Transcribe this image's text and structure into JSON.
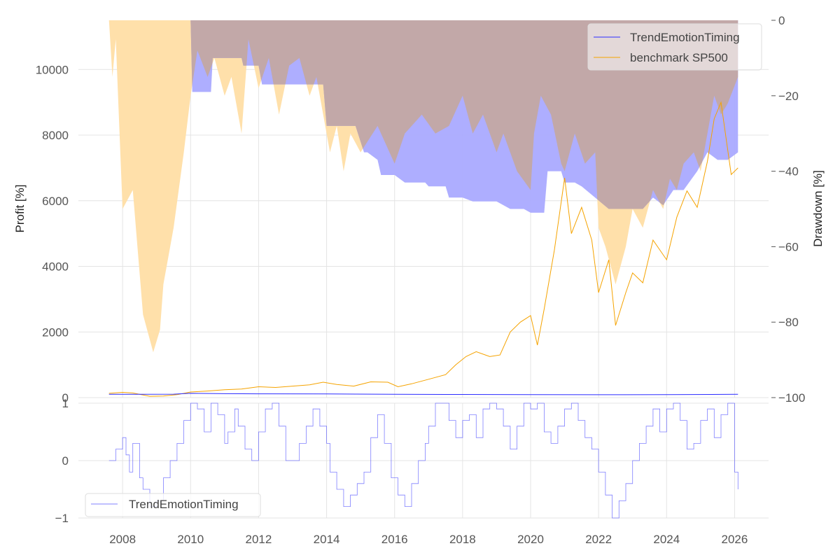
{
  "colors": {
    "strategy": "#2b2bff",
    "benchmark": "#f5a300",
    "strategy_dd_fill": "#aaaaff",
    "benchmark_dd_fill": "#ffe0aa",
    "overlap_fill": "#c2a8a8",
    "grid": "#e4e4e4",
    "tick_text": "#555555"
  },
  "chart_data": [
    {
      "type": "line",
      "panel": "top",
      "ylabel": "Profit [%]",
      "ylim": [
        0,
        11500
      ],
      "yticks": [
        "0",
        "2000",
        "4000",
        "6000",
        "8000",
        "10000"
      ],
      "ytick_values": [
        0,
        2000,
        4000,
        6000,
        8000,
        10000
      ],
      "y2label": "Drawdown [%]",
      "y2lim": [
        -100,
        0
      ],
      "y2ticks": [
        "−100",
        "−80",
        "−60",
        "−40",
        "−20",
        "0"
      ],
      "y2tick_values": [
        -100,
        -80,
        -60,
        -40,
        -20,
        0
      ],
      "xlim": [
        2006.7,
        2027.0
      ],
      "legend": {
        "position": "top-right",
        "entries": [
          "TrendEmotionTiming",
          "benchmark SP500"
        ]
      },
      "series": [
        {
          "name": "TrendEmotionTiming",
          "kind": "profit",
          "x": [
            2007.6,
            2008.5,
            2009.5,
            2010.0,
            2011.0,
            2012.0,
            2014.0,
            2016.0,
            2018.0,
            2020.0,
            2022.0,
            2024.0,
            2026.1
          ],
          "values": [
            100,
            102,
            105,
            130,
            120,
            115,
            110,
            100,
            95,
            90,
            88,
            92,
            100
          ]
        },
        {
          "name": "benchmark SP500",
          "kind": "profit",
          "x": [
            2007.6,
            2008.0,
            2008.3,
            2008.8,
            2009.2,
            2009.6,
            2010.0,
            2010.5,
            2011.0,
            2011.5,
            2012.0,
            2012.5,
            2013.0,
            2013.5,
            2013.9,
            2014.3,
            2014.8,
            2015.3,
            2015.8,
            2016.1,
            2016.5,
            2017.0,
            2017.5,
            2017.8,
            2018.1,
            2018.4,
            2018.8,
            2019.1,
            2019.4,
            2019.7,
            2020.0,
            2020.2,
            2020.4,
            2020.7,
            2021.0,
            2021.2,
            2021.5,
            2021.8,
            2022.0,
            2022.3,
            2022.5,
            2022.8,
            2023.0,
            2023.3,
            2023.6,
            2024.0,
            2024.3,
            2024.6,
            2024.9,
            2025.2,
            2025.4,
            2025.6,
            2025.9,
            2026.1
          ],
          "values": [
            130,
            160,
            140,
            40,
            50,
            90,
            170,
            200,
            240,
            260,
            330,
            310,
            350,
            390,
            470,
            400,
            350,
            480,
            470,
            330,
            420,
            560,
            700,
            1000,
            1250,
            1400,
            1250,
            1300,
            2000,
            2300,
            2500,
            1600,
            2700,
            4500,
            6700,
            5000,
            5800,
            4800,
            3200,
            4200,
            2200,
            3200,
            3800,
            3500,
            4800,
            4200,
            5500,
            6300,
            5800,
            7200,
            8500,
            9000,
            6800,
            7000
          ]
        },
        {
          "name": "TrendEmotionTiming drawdown",
          "kind": "drawdown",
          "x": [
            2007.6,
            2010.0,
            2010.05,
            2010.6,
            2010.65,
            2011.5,
            2011.55,
            2012.0,
            2012.1,
            2012.4,
            2012.45,
            2013.5,
            2013.9,
            2014.0,
            2014.05,
            2014.8,
            2014.85,
            2015.1,
            2015.2,
            2015.5,
            2015.6,
            2016.0,
            2016.3,
            2016.9,
            2017.0,
            2017.5,
            2017.6,
            2018.0,
            2018.3,
            2019.0,
            2019.4,
            2019.8,
            2020.0,
            2020.4,
            2020.5,
            2020.9,
            2021.0,
            2021.3,
            2021.5,
            2022.3,
            2022.8,
            2023.3,
            2023.6,
            2023.9,
            2024.2,
            2024.5,
            2024.9,
            2025.2,
            2025.5,
            2025.8,
            2026.1
          ],
          "values": [
            0,
            0,
            -19,
            -19,
            -10,
            -10,
            -12,
            -12,
            -17,
            -17,
            -17,
            -17,
            -17,
            -28,
            -28,
            -28,
            -28,
            -35,
            -35,
            -37,
            -41,
            -41,
            -43,
            -43,
            -44,
            -44,
            -47,
            -47,
            -48,
            -48,
            -50,
            -50,
            -51,
            -51,
            -40,
            -40,
            -43,
            -43,
            -44,
            -50,
            -50,
            -50,
            -47,
            -49,
            -45,
            -45,
            -40,
            -35,
            -37,
            -37,
            -35
          ]
        },
        {
          "name": "benchmark SP500 drawdown",
          "kind": "drawdown",
          "x": [
            2007.6,
            2007.7,
            2007.8,
            2008.0,
            2008.3,
            2008.6,
            2008.9,
            2009.1,
            2009.2,
            2009.5,
            2009.8,
            2010.0,
            2010.2,
            2010.5,
            2010.7,
            2011.0,
            2011.2,
            2011.5,
            2011.7,
            2012.0,
            2012.3,
            2012.6,
            2012.9,
            2013.2,
            2013.5,
            2013.7,
            2013.9,
            2014.1,
            2014.3,
            2014.5,
            2014.7,
            2015.0,
            2015.5,
            2016.0,
            2016.3,
            2016.8,
            2017.2,
            2017.6,
            2018.0,
            2018.3,
            2018.6,
            2019.0,
            2019.2,
            2019.6,
            2020.0,
            2020.1,
            2020.3,
            2020.6,
            2020.9,
            2021.0,
            2021.3,
            2021.6,
            2021.9,
            2022.0,
            2022.2,
            2022.5,
            2022.8,
            2023.0,
            2023.3,
            2023.6,
            2023.9,
            2024.1,
            2024.3,
            2024.5,
            2024.8,
            2025.0,
            2025.2,
            2025.4,
            2025.6,
            2025.8,
            2026.1
          ],
          "values": [
            0,
            -15,
            -5,
            -50,
            -45,
            -78,
            -88,
            -82,
            -70,
            -55,
            -35,
            -20,
            -8,
            -15,
            -10,
            -20,
            -15,
            -30,
            -5,
            -18,
            -10,
            -25,
            -12,
            -10,
            -20,
            -15,
            -25,
            -35,
            -28,
            -40,
            -30,
            -35,
            -28,
            -38,
            -30,
            -25,
            -30,
            -28,
            -20,
            -30,
            -25,
            -35,
            -30,
            -40,
            -45,
            -30,
            -20,
            -25,
            -38,
            -40,
            -30,
            -38,
            -35,
            -55,
            -60,
            -70,
            -60,
            -50,
            -55,
            -45,
            -50,
            -42,
            -45,
            -38,
            -35,
            -40,
            -30,
            -20,
            -25,
            -22,
            -15
          ]
        }
      ]
    },
    {
      "type": "line",
      "panel": "bottom",
      "ylim": [
        -1,
        1
      ],
      "yticks": [
        "−1",
        "0",
        "1"
      ],
      "ytick_values": [
        -1,
        0,
        1
      ],
      "xticks": [
        "2008",
        "2010",
        "2012",
        "2014",
        "2016",
        "2018",
        "2020",
        "2022",
        "2024",
        "2026"
      ],
      "xtick_values": [
        2008,
        2010,
        2012,
        2014,
        2016,
        2018,
        2020,
        2022,
        2024,
        2026
      ],
      "xlim": [
        2006.7,
        2027.0
      ],
      "legend": {
        "position": "bottom-left",
        "entries": [
          "TrendEmotionTiming"
        ]
      },
      "series": [
        {
          "name": "TrendEmotionTiming",
          "x": [
            2007.6,
            2007.8,
            2008.0,
            2008.1,
            2008.2,
            2008.3,
            2008.5,
            2008.6,
            2008.8,
            2009.0,
            2009.2,
            2009.4,
            2009.6,
            2009.8,
            2010.0,
            2010.2,
            2010.4,
            2010.6,
            2010.8,
            2011.0,
            2011.1,
            2011.3,
            2011.4,
            2011.6,
            2011.8,
            2012.0,
            2012.2,
            2012.4,
            2012.6,
            2012.8,
            2013.0,
            2013.2,
            2013.4,
            2013.6,
            2013.8,
            2014.0,
            2014.1,
            2014.3,
            2014.5,
            2014.7,
            2014.9,
            2015.1,
            2015.3,
            2015.5,
            2015.7,
            2015.9,
            2016.1,
            2016.3,
            2016.5,
            2016.7,
            2016.9,
            2017.0,
            2017.2,
            2017.4,
            2017.6,
            2017.8,
            2018.0,
            2018.2,
            2018.4,
            2018.6,
            2018.8,
            2019.0,
            2019.2,
            2019.4,
            2019.6,
            2019.8,
            2020.0,
            2020.2,
            2020.4,
            2020.6,
            2020.8,
            2021.0,
            2021.2,
            2021.4,
            2021.6,
            2021.8,
            2022.0,
            2022.2,
            2022.4,
            2022.6,
            2022.8,
            2023.0,
            2023.2,
            2023.4,
            2023.6,
            2023.8,
            2024.0,
            2024.2,
            2024.4,
            2024.6,
            2024.8,
            2025.0,
            2025.2,
            2025.4,
            2025.6,
            2025.8,
            2026.0,
            2026.1
          ],
          "values": [
            0,
            0.2,
            0.4,
            0.1,
            -0.2,
            0.3,
            -0.3,
            -0.5,
            -0.8,
            -0.7,
            -0.3,
            0,
            0.3,
            0.7,
            1,
            0.9,
            0.5,
            1,
            0.8,
            0.3,
            0.5,
            0.9,
            0.6,
            0.2,
            0,
            0.5,
            0.9,
            1,
            0.6,
            0,
            0,
            0.3,
            0.6,
            0.9,
            0.6,
            0.3,
            -0.2,
            -0.5,
            -0.8,
            -0.6,
            -0.4,
            -0.2,
            0.4,
            0.8,
            0.3,
            -0.3,
            -0.6,
            -0.8,
            -0.4,
            0,
            0.3,
            0.6,
            1,
            1,
            0.7,
            0.4,
            0.7,
            0.8,
            0.4,
            0.9,
            1,
            0.9,
            0.6,
            0.2,
            0.6,
            1,
            0.9,
            1,
            0.5,
            0.3,
            0.6,
            0.9,
            1,
            0.7,
            0.4,
            0.2,
            -0.2,
            -0.6,
            -1,
            -0.7,
            -0.4,
            0,
            0.3,
            0.6,
            0.9,
            0.5,
            0.9,
            1,
            0.7,
            0.2,
            0.3,
            0.7,
            0.9,
            0.4,
            0.8,
            1,
            -0.2,
            -0.5
          ],
          "step": true
        }
      ]
    }
  ]
}
